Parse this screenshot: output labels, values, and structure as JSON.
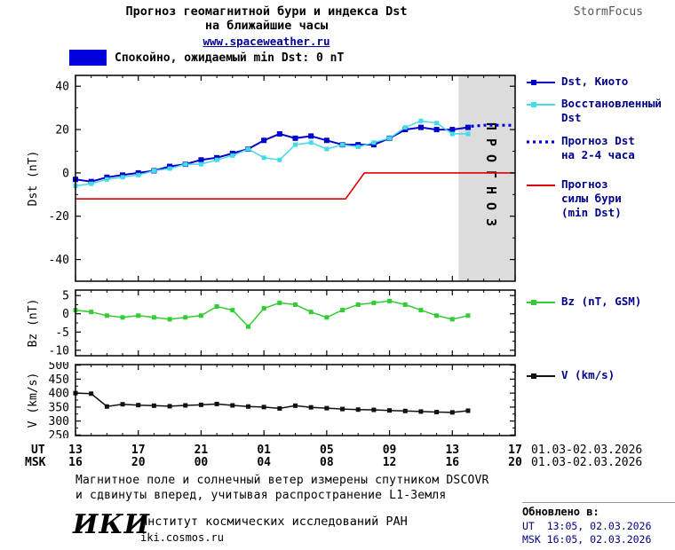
{
  "header": {
    "title_line1": "Прогноз геомагнитной бури и индекса Dst",
    "title_line2": "на ближайшие часы",
    "site": "www.spaceweather.ru",
    "brand": "StormFocus"
  },
  "status": {
    "label": "Спокойно, ожидаемый min Dst: 0 nT",
    "color": "#0000dd"
  },
  "chart_data": [
    {
      "type": "line",
      "title": "Прогноз геомагнитной бури и индекса Dst на ближайшие часы",
      "ylabel": "Dst (nT)",
      "xlim": [
        0,
        28
      ],
      "ylim": [
        -50,
        45
      ],
      "yticks": [
        40,
        20,
        0,
        -20,
        -40
      ],
      "yminor": 10,
      "xticks": [
        0,
        4,
        8,
        12,
        16,
        20,
        24,
        28
      ],
      "xminor": 1,
      "forecast_band": {
        "start": 24.4,
        "label": "ПРОГНОЗ",
        "color": "#dcdcdc"
      },
      "series": [
        {
          "name": "Dst, Киото",
          "color": "#0000cc",
          "style": "line-markers",
          "width": 2,
          "marker_size": 6,
          "x": [
            0,
            1,
            2,
            3,
            4,
            5,
            6,
            7,
            8,
            9,
            10,
            11,
            12,
            13,
            14,
            15,
            16,
            17,
            18,
            19,
            20,
            21,
            22,
            23,
            24,
            25
          ],
          "y": [
            -3,
            -4,
            -2,
            -1,
            0,
            1,
            3,
            4,
            6,
            7,
            9,
            11,
            15,
            18,
            16,
            17,
            15,
            13,
            13,
            13,
            16,
            20,
            21,
            20,
            20,
            21
          ]
        },
        {
          "name": "Восстановленный Dst",
          "color": "#44dbe8",
          "style": "line-markers",
          "width": 1.5,
          "marker_size": 5,
          "x": [
            0,
            1,
            2,
            3,
            4,
            5,
            6,
            7,
            8,
            9,
            10,
            11,
            12,
            13,
            14,
            15,
            16,
            17,
            18,
            19,
            20,
            21,
            22,
            23,
            24,
            25
          ],
          "y": [
            -6,
            -5,
            -3,
            -2,
            -1,
            1,
            2,
            4,
            4,
            6,
            8,
            11,
            7,
            6,
            13,
            14,
            11,
            13,
            12,
            14,
            16,
            21,
            24,
            23,
            18,
            18
          ]
        },
        {
          "name": "Прогноз Dst на 2-4 часа",
          "color": "#0000dd",
          "style": "dotted",
          "width": 3.2,
          "x": [
            25.2,
            26,
            27,
            27.8
          ],
          "y": [
            21.5,
            22,
            22,
            22
          ]
        },
        {
          "name": "Прогноз силы бури (min Dst)",
          "color": "#dd0000",
          "style": "line",
          "width": 1.6,
          "x": [
            0,
            17.2,
            18.4,
            28
          ],
          "y": [
            -12,
            -12,
            0,
            0
          ]
        }
      ]
    },
    {
      "type": "line",
      "ylabel": "Bz (nT)",
      "xlim": [
        0,
        28
      ],
      "ylim": [
        -11.5,
        6.5
      ],
      "yticks": [
        5,
        0,
        -5,
        -10
      ],
      "yminor": 2.5,
      "xticks": [
        0,
        4,
        8,
        12,
        16,
        20,
        24,
        28
      ],
      "xminor": 1,
      "series": [
        {
          "name": "Bz (nT, GSM)",
          "color": "#33cc33",
          "style": "line-markers",
          "width": 1.5,
          "marker_size": 5,
          "x": [
            0,
            1,
            2,
            3,
            4,
            5,
            6,
            7,
            8,
            9,
            10,
            11,
            12,
            13,
            14,
            15,
            16,
            17,
            18,
            19,
            20,
            21,
            22,
            23,
            24,
            25
          ],
          "y": [
            1,
            0.5,
            -0.5,
            -1,
            -0.5,
            -1,
            -1.5,
            -1,
            -0.5,
            2,
            1,
            -3.5,
            1.5,
            3,
            2.5,
            0.5,
            -1,
            1,
            2.5,
            3,
            3.5,
            2.5,
            1,
            -0.5,
            -1.5,
            -0.5
          ]
        }
      ]
    },
    {
      "type": "line",
      "ylabel": "V (km/s)",
      "xlim": [
        0,
        28
      ],
      "ylim": [
        248,
        502
      ],
      "yticks": [
        500,
        450,
        400,
        350,
        300,
        250
      ],
      "yminor": 25,
      "xticks": [
        0,
        4,
        8,
        12,
        16,
        20,
        24,
        28
      ],
      "xminor": 1,
      "series": [
        {
          "name": "V (km/s)",
          "color": "#111111",
          "style": "line-markers",
          "width": 1.5,
          "marker_size": 5,
          "x": [
            0,
            1,
            2,
            3,
            4,
            5,
            6,
            7,
            8,
            9,
            10,
            11,
            12,
            13,
            14,
            15,
            16,
            17,
            18,
            19,
            20,
            21,
            22,
            23,
            24,
            25
          ],
          "y": [
            400,
            398,
            352,
            360,
            357,
            355,
            353,
            356,
            358,
            361,
            356,
            352,
            350,
            345,
            355,
            349,
            346,
            343,
            341,
            340,
            338,
            336,
            334,
            332,
            331,
            337
          ]
        }
      ]
    }
  ],
  "axis": {
    "ut_label": "UT",
    "msk_label": "MSK",
    "tick_positions": [
      0,
      4,
      8,
      12,
      16,
      20,
      24,
      28
    ],
    "ut_ticks": [
      "13",
      "17",
      "21",
      "01",
      "05",
      "09",
      "13",
      "17"
    ],
    "msk_ticks": [
      "16",
      "20",
      "00",
      "04",
      "08",
      "12",
      "16",
      "20"
    ],
    "ut_date": "01.03-02.03.2026",
    "msk_date": "01.03-02.03.2026"
  },
  "legend": {
    "items": [
      {
        "label": "Dst, Киото",
        "color": "#0000cc",
        "style": "line-markers"
      },
      {
        "label": "Восстановленный\nDst",
        "color": "#44dbe8",
        "style": "line-markers"
      },
      {
        "label": "Прогноз Dst\nна 2-4 часа",
        "color": "#0000dd",
        "style": "dotted"
      },
      {
        "label": "Прогноз\nсилы бури\n(min Dst)",
        "color": "#dd0000",
        "style": "line"
      },
      {
        "label": "Bz (nT, GSM)",
        "color": "#33cc33",
        "style": "line-markers"
      },
      {
        "label": "V (km/s)",
        "color": "#111111",
        "style": "line-markers"
      }
    ]
  },
  "footer": {
    "note_line1": "Магнитное поле и солнечный ветер измерены спутником DSCOVR",
    "note_line2": "и сдвинуты вперед, учитывая распространение L1-Земля",
    "logo": "ИКИ",
    "institute": "Институт космических исследований РАН",
    "site": "iki.cosmos.ru",
    "updated_label": "Обновлено в:",
    "updated_ut": "UT  13:05, 02.03.2026",
    "updated_msk": "MSK 16:05, 02.03.2026"
  }
}
